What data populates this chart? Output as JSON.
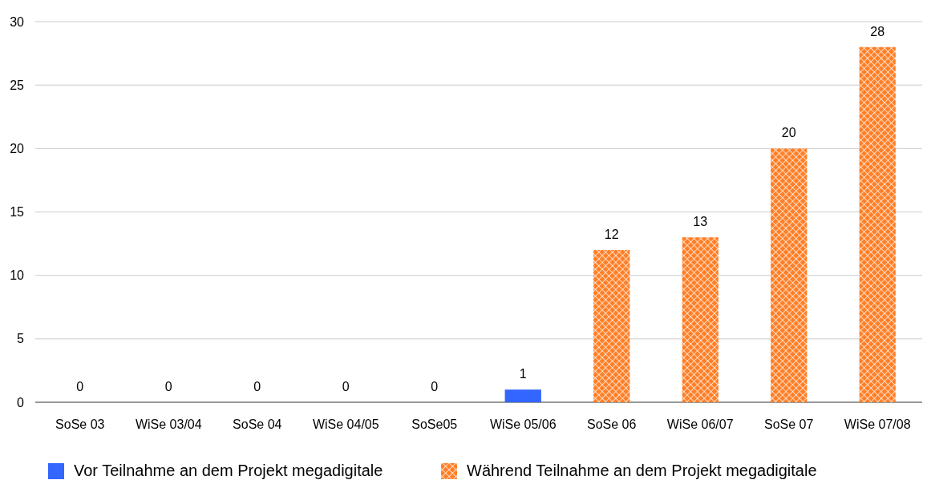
{
  "chart_data": {
    "type": "bar",
    "categories": [
      "SoSe 03",
      "WiSe 03/04",
      "SoSe 04",
      "WiSe 04/05",
      "SoSe05",
      "WiSe 05/06",
      "SoSe 06",
      "WiSe 06/07",
      "SoSe 07",
      "WiSe 07/08"
    ],
    "series": [
      {
        "name": "Vor Teilnahme an dem Projekt megadigitale",
        "color": "#3366ff",
        "values": [
          0,
          0,
          0,
          0,
          0,
          1,
          null,
          null,
          null,
          null
        ]
      },
      {
        "name": "Während Teilnahme an dem Projekt megadigitale",
        "color": "#ff7f27",
        "values": [
          null,
          null,
          null,
          null,
          null,
          null,
          12,
          13,
          20,
          28
        ]
      }
    ],
    "ylim": [
      0,
      30
    ],
    "yticks": [
      0,
      5,
      10,
      15,
      20,
      25,
      30
    ],
    "grid": "y",
    "data_labels": true,
    "legend": "bottom left"
  }
}
